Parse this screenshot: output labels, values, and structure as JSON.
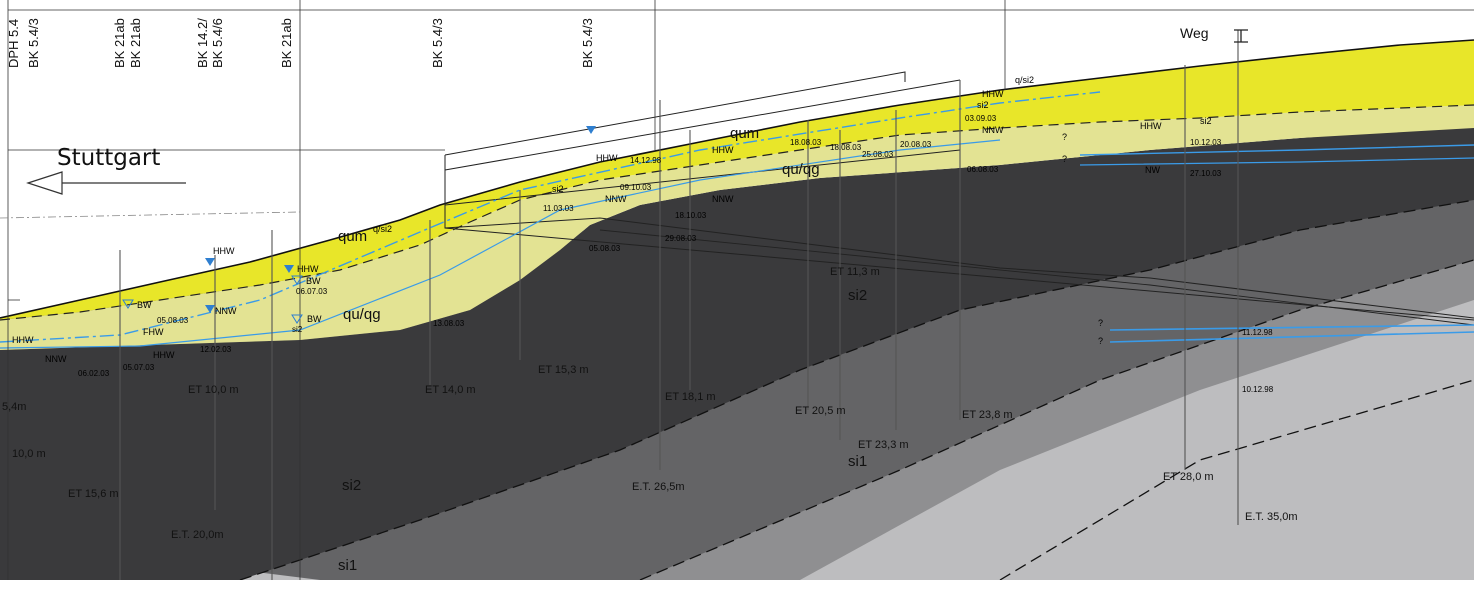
{
  "city_label": "Stuttgart",
  "road_label": "Weg",
  "boreholes": [
    "DPH 5.4",
    "BK 5.4/3",
    "BK 21ab",
    "BK 21ab",
    "BK 14.2/",
    "BK 5.4/6",
    "BK 21ab",
    "BK 5.4/3",
    "BK 5.4/3"
  ],
  "layers": {
    "qum": "qum",
    "quqg": "qu/qg",
    "si2": "si2",
    "si1": "si1",
    "qsi2": "q/si2"
  },
  "water_levels": {
    "hhw": "HHW",
    "nnw": "NNW",
    "bw": "BW",
    "fhw": "FHW",
    "nw": "NW",
    "si2": "si2",
    "unknown": "?"
  },
  "dates": [
    "14.12.98",
    "09.10.03",
    "11.03.03",
    "18.10.03",
    "29.08.03",
    "05.08.03",
    "18.08.03",
    "25.08.03",
    "20.08.03",
    "06.07.03",
    "05.08.03",
    "12.02.03",
    "06.02.03",
    "05.07.03",
    "13.08.03",
    "03.09.03",
    "06.08.03",
    "10.12.03",
    "27.10.03",
    "11.12.98",
    "10.12.98"
  ],
  "final_depths": [
    "ET 11,3 m",
    "ET 15,3 m",
    "ET 14,0 m",
    "ET 10,0 m",
    "ET 18,1 m",
    "ET 20,5 m",
    "ET 23,3 m",
    "ET 23,8 m",
    "ET 15,6 m",
    "E.T. 26,5m",
    "E.T. 20,0m",
    "ET 28,0 m",
    "E.T. 35,0m",
    "10,0 m",
    "5,4m"
  ],
  "colors": {
    "qum": "#e8e629",
    "quqg": "#e3e393",
    "si2": "#3a3a3c",
    "si1_mid": "#646466",
    "si1_light": "#8f8f91",
    "bottom": "#bdbdbf",
    "water": "#3a9be8",
    "water_marker": "#2f7fd0"
  }
}
